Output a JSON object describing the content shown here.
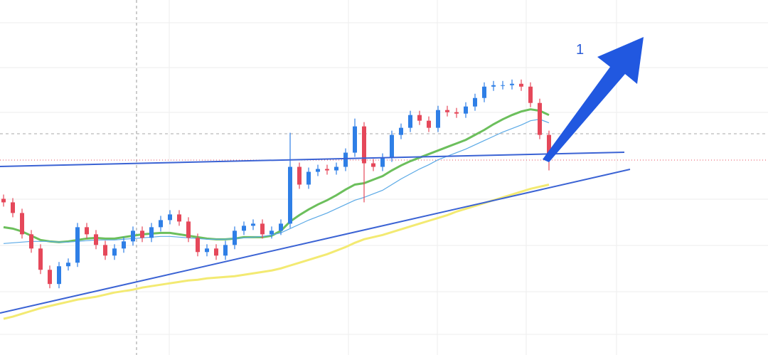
{
  "chart_data": {
    "type": "candlestick",
    "annotation": "1",
    "ylim": [
      0,
      500
    ],
    "up_color": "#2f7fe6",
    "down_color": "#e5485a",
    "open": [
      220,
      215,
      200,
      170,
      150,
      120,
      100,
      125,
      130,
      180,
      170,
      155,
      140,
      150,
      160,
      175,
      165,
      180,
      190,
      198,
      188,
      165,
      145,
      150,
      140,
      155,
      175,
      182,
      185,
      170,
      175,
      185,
      265,
      240,
      258,
      262,
      260,
      265,
      285,
      322,
      270,
      265,
      278,
      310,
      320,
      338,
      330,
      320,
      345,
      342,
      340,
      350,
      362,
      378,
      380,
      380,
      382,
      378,
      355,
      310
    ],
    "high": [
      226,
      221,
      206,
      176,
      156,
      126,
      131,
      136,
      186,
      186,
      176,
      161,
      156,
      166,
      181,
      181,
      186,
      196,
      204,
      204,
      194,
      171,
      156,
      156,
      161,
      181,
      188,
      191,
      191,
      181,
      191,
      313,
      271,
      264,
      268,
      268,
      271,
      291,
      333,
      328,
      276,
      284,
      316,
      326,
      344,
      344,
      336,
      351,
      351,
      348,
      356,
      368,
      384,
      386,
      386,
      388,
      388,
      384,
      361,
      316
    ],
    "low": [
      209,
      194,
      164,
      144,
      114,
      94,
      94,
      119,
      124,
      164,
      149,
      134,
      134,
      144,
      154,
      159,
      159,
      174,
      184,
      182,
      159,
      139,
      139,
      134,
      134,
      149,
      169,
      176,
      164,
      164,
      169,
      179,
      234,
      234,
      252,
      254,
      254,
      259,
      279,
      215,
      259,
      259,
      272,
      304,
      314,
      324,
      314,
      314,
      336,
      334,
      334,
      344,
      356,
      372,
      374,
      374,
      372,
      349,
      304,
      260
    ],
    "close": [
      215,
      200,
      170,
      150,
      120,
      100,
      125,
      130,
      180,
      170,
      155,
      140,
      150,
      160,
      175,
      165,
      180,
      190,
      198,
      188,
      165,
      145,
      150,
      140,
      155,
      175,
      182,
      185,
      170,
      175,
      185,
      265,
      240,
      258,
      262,
      260,
      265,
      285,
      322,
      270,
      265,
      278,
      310,
      320,
      338,
      330,
      320,
      345,
      342,
      340,
      350,
      362,
      378,
      380,
      380,
      382,
      378,
      355,
      310,
      278
    ],
    "series": [
      {
        "color": "#6cbf5c",
        "values": [
          180,
          178,
          174,
          168,
          162,
          160,
          159,
          160,
          162,
          164,
          165,
          164,
          164,
          166,
          168,
          170,
          171,
          172,
          172,
          170,
          168,
          166,
          164,
          163,
          163,
          164,
          166,
          166,
          166,
          168,
          175,
          188,
          197,
          205,
          212,
          218,
          225,
          233,
          240,
          242,
          247,
          252,
          260,
          267,
          273,
          278,
          283,
          288,
          293,
          298,
          303,
          310,
          317,
          325,
          332,
          338,
          343,
          346,
          344,
          338
        ]
      },
      {
        "color": "#5aa9e6",
        "values": [
          157,
          158,
          159,
          160,
          160,
          160,
          159,
          159,
          160,
          161,
          162,
          162,
          162,
          163,
          164,
          165,
          166,
          167,
          167,
          166,
          165,
          164,
          163,
          163,
          163,
          164,
          165,
          166,
          167,
          169,
          172,
          178,
          184,
          190,
          195,
          200,
          206,
          212,
          218,
          222,
          227,
          232,
          240,
          248,
          255,
          262,
          268,
          275,
          280,
          285,
          290,
          296,
          302,
          308,
          314,
          319,
          324,
          330,
          332,
          327
        ]
      },
      {
        "color": "#f3ea72",
        "values": [
          51,
          54,
          58,
          62,
          66,
          69,
          72,
          75,
          78,
          80,
          82,
          85,
          88,
          90,
          92,
          95,
          97,
          99,
          101,
          103,
          105,
          106,
          108,
          109,
          110,
          111,
          113,
          115,
          117,
          119,
          122,
          126,
          130,
          134,
          138,
          142,
          147,
          152,
          158,
          163,
          166,
          169,
          173,
          177,
          181,
          185,
          189,
          193,
          197,
          202,
          206,
          210,
          214,
          218,
          222,
          226,
          230,
          234,
          237,
          240
        ]
      }
    ]
  }
}
